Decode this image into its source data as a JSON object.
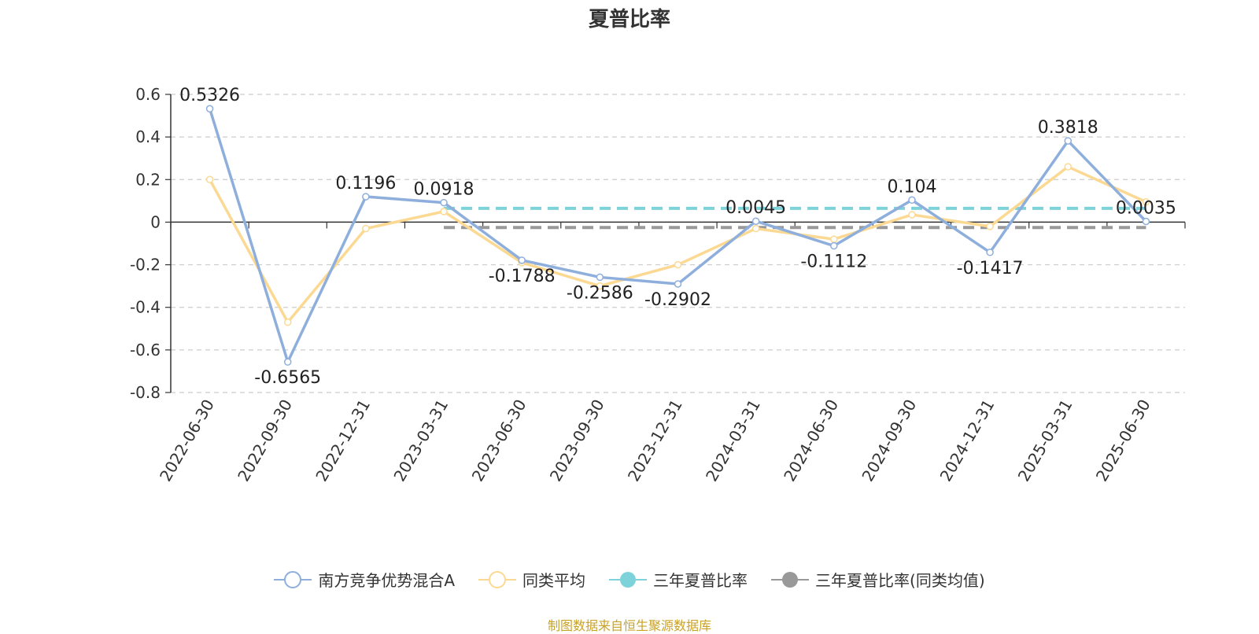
{
  "chart_data": {
    "type": "line",
    "title": "夏普比率",
    "categories": [
      "2022-06-30",
      "2022-09-30",
      "2022-12-31",
      "2023-03-31",
      "2023-06-30",
      "2023-09-30",
      "2023-12-31",
      "2024-03-31",
      "2024-06-30",
      "2024-09-30",
      "2024-12-31",
      "2025-03-31",
      "2025-06-30"
    ],
    "ylim": [
      -0.8,
      0.6
    ],
    "yticks": [
      "0.6",
      "0.4",
      "0.2",
      "0",
      "-0.2",
      "-0.4",
      "-0.6",
      "-0.8"
    ],
    "grid": true,
    "legend_position": "bottom",
    "series": [
      {
        "name": "南方竞争优势混合A",
        "color": "#8eaedc",
        "values": [
          0.5326,
          -0.6565,
          0.1196,
          0.0918,
          -0.1788,
          -0.2586,
          -0.2902,
          0.0045,
          -0.1112,
          0.104,
          -0.1417,
          0.3818,
          0.0035
        ],
        "labels": [
          "0.5326",
          "-0.6565",
          "0.1196",
          "0.0918",
          "-0.1788",
          "-0.2586",
          "-0.2902",
          "0.0045",
          "-0.1112",
          "0.104",
          "-0.1417",
          "0.3818",
          "0.0035"
        ]
      },
      {
        "name": "同类平均",
        "color": "#fcd992",
        "values": [
          0.2,
          -0.47,
          -0.03,
          0.05,
          -0.19,
          -0.3,
          -0.2,
          -0.03,
          -0.08,
          0.035,
          -0.02,
          0.26,
          0.095
        ]
      },
      {
        "name": "三年夏普比率",
        "color": "#7ed3da",
        "values": [
          null,
          null,
          null,
          0.065,
          0.065,
          0.065,
          0.065,
          0.065,
          0.065,
          0.065,
          0.065,
          0.065,
          0.065
        ]
      },
      {
        "name": "三年夏普比率(同类均值)",
        "color": "#999999",
        "values": [
          null,
          null,
          null,
          -0.025,
          -0.025,
          -0.025,
          -0.025,
          -0.025,
          -0.025,
          -0.025,
          -0.025,
          -0.025,
          -0.025
        ]
      }
    ]
  },
  "footer": {
    "source": "制图数据来自恒生聚源数据库"
  }
}
